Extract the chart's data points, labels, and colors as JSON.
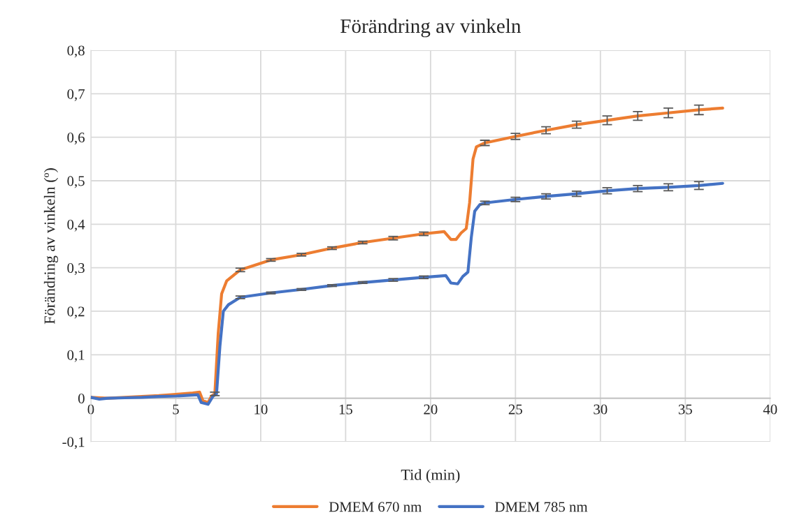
{
  "chart_data": {
    "type": "line",
    "title": "Förändring av vinkeln",
    "xlabel": "Tid (min)",
    "ylabel": "Förändring av vinkeln (º)",
    "xlim": [
      0,
      40
    ],
    "xticks": [
      0,
      5,
      10,
      15,
      20,
      25,
      30,
      35,
      40
    ],
    "ylim": [
      -0.1,
      0.8
    ],
    "yticks": [
      {
        "value": -0.1,
        "label": "-0,1"
      },
      0,
      {
        "value": 0.1,
        "label": "0,1"
      },
      {
        "value": 0.2,
        "label": "0,2"
      },
      {
        "value": 0.3,
        "label": "0,3"
      },
      {
        "value": 0.4,
        "label": "0,4"
      },
      {
        "value": 0.5,
        "label": "0,5"
      },
      {
        "value": 0.6,
        "label": "0,6"
      },
      {
        "value": 0.7,
        "label": "0,7"
      },
      {
        "value": 0.8,
        "label": "0,8"
      }
    ],
    "grid": true,
    "legend": "bottom",
    "marker": "none",
    "line_style": "solid",
    "series": [
      {
        "name": "DMEM 670 nm",
        "color": "#ed7d31",
        "x": [
          0,
          1,
          2,
          3,
          4,
          5,
          6,
          6.4,
          6.6,
          6.9,
          7.1,
          7.3,
          7.5,
          7.7,
          8.0,
          8.8,
          10.6,
          12.4,
          14.2,
          16.0,
          17.8,
          19.6,
          20.8,
          21.2,
          21.5,
          21.8,
          22.1,
          22.3,
          22.5,
          22.7,
          23.2,
          25.0,
          26.8,
          28.6,
          30.4,
          32.2,
          34.0,
          35.8,
          37.2
        ],
        "values": [
          0.002,
          0.0,
          0.002,
          0.004,
          0.006,
          0.009,
          0.012,
          0.014,
          -0.006,
          -0.01,
          0.005,
          0.01,
          0.15,
          0.24,
          0.27,
          0.295,
          0.318,
          0.33,
          0.345,
          0.358,
          0.368,
          0.378,
          0.383,
          0.365,
          0.365,
          0.38,
          0.39,
          0.45,
          0.55,
          0.578,
          0.587,
          0.602,
          0.616,
          0.629,
          0.639,
          0.649,
          0.656,
          0.663,
          0.667
        ],
        "errors": [
          null,
          null,
          null,
          null,
          null,
          null,
          null,
          null,
          null,
          null,
          null,
          0.004,
          null,
          null,
          null,
          0.004,
          0.003,
          0.003,
          0.003,
          0.003,
          0.004,
          0.004,
          null,
          null,
          null,
          null,
          null,
          null,
          null,
          null,
          0.006,
          0.007,
          0.008,
          0.008,
          0.01,
          0.01,
          0.011,
          0.011,
          null
        ]
      },
      {
        "name": "DMEM 785 nm",
        "color": "#4472c4",
        "x": [
          0,
          0.5,
          1,
          2,
          3,
          4,
          5,
          6.3,
          6.5,
          6.9,
          7.2,
          7.4,
          7.6,
          7.8,
          8.1,
          8.8,
          10.6,
          12.4,
          14.2,
          16.0,
          17.8,
          19.6,
          20.9,
          21.2,
          21.6,
          21.9,
          22.2,
          22.4,
          22.6,
          22.9,
          23.2,
          25.0,
          26.8,
          28.6,
          30.4,
          32.2,
          34.0,
          35.8,
          37.2
        ],
        "values": [
          0.002,
          -0.002,
          0.0,
          0.001,
          0.002,
          0.004,
          0.005,
          0.008,
          -0.01,
          -0.014,
          0.005,
          0.01,
          0.12,
          0.2,
          0.215,
          0.232,
          0.242,
          0.25,
          0.259,
          0.266,
          0.272,
          0.278,
          0.282,
          0.265,
          0.263,
          0.28,
          0.29,
          0.37,
          0.43,
          0.445,
          0.449,
          0.457,
          0.464,
          0.47,
          0.477,
          0.482,
          0.485,
          0.489,
          0.494
        ],
        "errors": [
          null,
          null,
          null,
          null,
          null,
          null,
          null,
          null,
          null,
          null,
          null,
          null,
          null,
          null,
          null,
          0.003,
          0.002,
          0.002,
          0.002,
          0.002,
          0.003,
          0.003,
          null,
          null,
          null,
          null,
          null,
          null,
          null,
          null,
          0.004,
          0.005,
          0.006,
          0.006,
          0.007,
          0.007,
          0.008,
          0.009,
          null
        ]
      }
    ]
  }
}
